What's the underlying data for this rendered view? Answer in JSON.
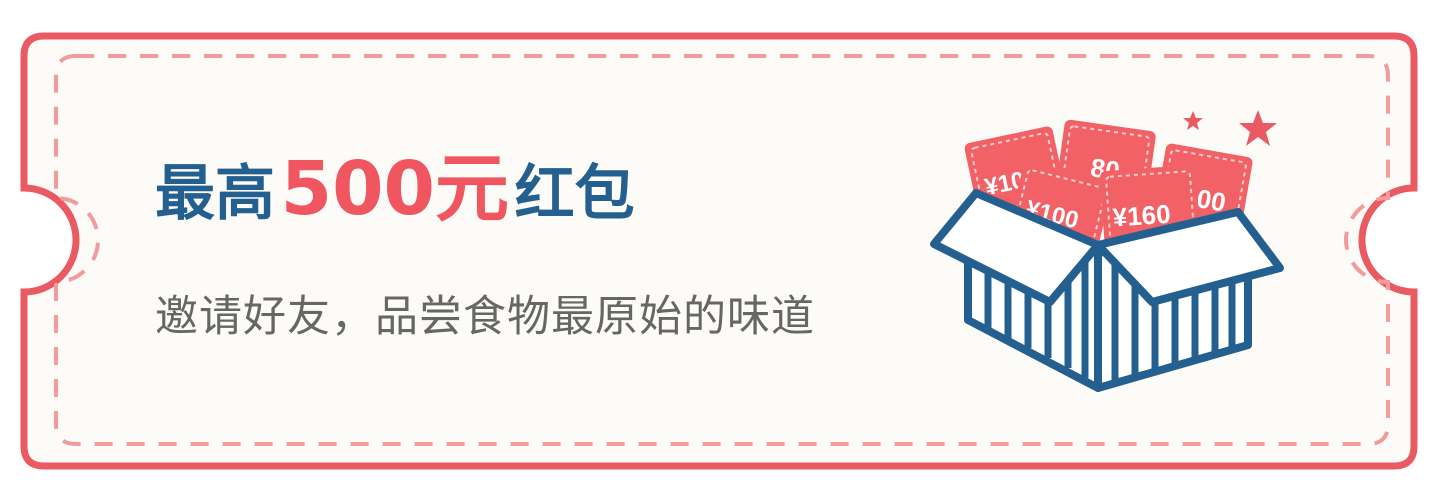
{
  "coupon": {
    "headline_prefix": "最高",
    "headline_amount": "500元",
    "headline_suffix": "红包",
    "subtitle": "邀请好友，品尝食物最原始的味道"
  },
  "illustration": {
    "icon": "gift-box-with-red-envelope-coupons-icon",
    "ticket_labels": [
      "¥100",
      "80",
      "¥160",
      "¥100",
      "100"
    ]
  },
  "colors": {
    "border": "#ea5a63",
    "dash": "#f29a9c",
    "background": "#fdfbf8",
    "headline_blue": "#24608f",
    "headline_red": "#f0565f",
    "subtitle": "#666666",
    "ticket": "#f26166"
  }
}
